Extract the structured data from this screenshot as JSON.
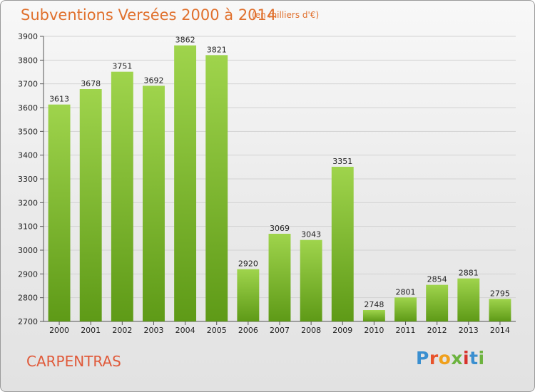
{
  "header": {
    "title": "Subventions Versées 2000 à 2014",
    "unit": "(en milliers d'€)"
  },
  "footer": {
    "city": "CARPENTRAS",
    "logo": "Proxiti",
    "logo_colors": [
      "#3a8fd0",
      "#e8532b",
      "#f0a01c",
      "#6cb33e",
      "#d7322c",
      "#3a8fd0",
      "#6cb33e"
    ]
  },
  "chart_data": {
    "type": "bar",
    "title": "Subventions Versées 2000 à 2014",
    "subtitle": "(en milliers d'€)",
    "categories": [
      "2000",
      "2001",
      "2002",
      "2003",
      "2004",
      "2005",
      "2006",
      "2007",
      "2008",
      "2009",
      "2010",
      "2011",
      "2012",
      "2013",
      "2014"
    ],
    "values": [
      3613,
      3678,
      3751,
      3692,
      3862,
      3821,
      2920,
      3069,
      3043,
      3351,
      2748,
      2801,
      2854,
      2881,
      2795
    ],
    "ylim": [
      2700,
      3900
    ],
    "yticks": [
      2700,
      2800,
      2900,
      3000,
      3100,
      3200,
      3300,
      3400,
      3500,
      3600,
      3700,
      3800,
      3900
    ],
    "grid": true,
    "bar_color_top": "#9fd44c",
    "bar_color_bottom": "#5e9a17"
  }
}
